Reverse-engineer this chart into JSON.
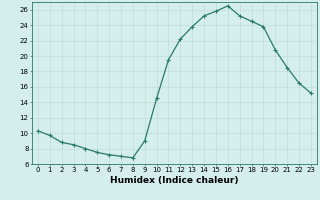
{
  "x": [
    0,
    1,
    2,
    3,
    4,
    5,
    6,
    7,
    8,
    9,
    10,
    11,
    12,
    13,
    14,
    15,
    16,
    17,
    18,
    19,
    20,
    21,
    22,
    23
  ],
  "y": [
    10.3,
    9.7,
    8.8,
    8.5,
    8.0,
    7.5,
    7.2,
    7.0,
    6.8,
    9.0,
    14.5,
    19.5,
    22.2,
    23.8,
    25.2,
    25.8,
    26.5,
    25.2,
    24.5,
    23.8,
    20.8,
    18.5,
    16.5,
    15.2
  ],
  "line_color": "#2a7a6a",
  "marker": "+",
  "marker_size": 3,
  "marker_linewidth": 0.8,
  "bg_color": "#d4eeec",
  "grid_color": "#c0dcd8",
  "xlabel": "Humidex (Indice chaleur)",
  "xlim": [
    -0.5,
    23.5
  ],
  "ylim": [
    6,
    27
  ],
  "yticks": [
    6,
    8,
    10,
    12,
    14,
    16,
    18,
    20,
    22,
    24,
    26
  ],
  "xticks": [
    0,
    1,
    2,
    3,
    4,
    5,
    6,
    7,
    8,
    9,
    10,
    11,
    12,
    13,
    14,
    15,
    16,
    17,
    18,
    19,
    20,
    21,
    22,
    23
  ],
  "tick_fontsize": 5,
  "xlabel_fontsize": 6.5,
  "line_width": 0.9,
  "spine_color": "#2a7a6a"
}
